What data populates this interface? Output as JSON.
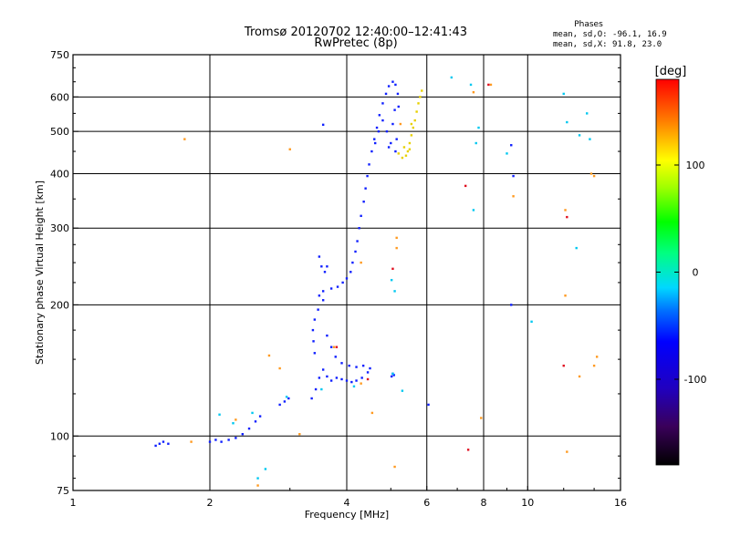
{
  "header": {
    "title": "Tromsø 20120702 12:40:00–12:41:43",
    "subtitle": "RwPretec (8p)",
    "phases_title": "Phases",
    "phases_o": "mean, sd,O: -96.1, 16.9",
    "phases_x": "mean, sd,X:  91.8, 23.0"
  },
  "chart_data": {
    "type": "scatter",
    "title": "Tromsø 20120702 12:40:00–12:41:43",
    "subtitle": "RwPretec (8p)",
    "xlabel": "Frequency [MHz]",
    "ylabel": "Stationary phase Virtual Height [km]",
    "xscale": "log2",
    "yscale": "log",
    "xlim": [
      1,
      16
    ],
    "ylim": [
      75,
      750
    ],
    "xticks": [
      1,
      2,
      4,
      6,
      8,
      10,
      16
    ],
    "xtick_labels": [
      "1",
      "2",
      "4",
      "6",
      "8",
      "10",
      "16"
    ],
    "yticks": [
      75,
      100,
      200,
      300,
      400,
      500,
      600,
      750
    ],
    "ytick_labels": [
      "75",
      "100",
      "200",
      "300",
      "400",
      "500",
      "600",
      "750"
    ],
    "grid": true,
    "colorbar": {
      "label": "[deg]",
      "range": [
        -180,
        180
      ],
      "ticks": [
        -100,
        0,
        100
      ],
      "tick_labels": [
        "-100",
        "0",
        "100"
      ]
    },
    "series": [
      {
        "points": [
          [
            1.52,
            95
          ],
          [
            1.55,
            96
          ],
          [
            1.58,
            97
          ],
          [
            1.62,
            96
          ],
          [
            2.0,
            97
          ],
          [
            2.06,
            98
          ],
          [
            2.12,
            97
          ],
          [
            2.2,
            98
          ],
          [
            2.28,
            99
          ],
          [
            2.36,
            101
          ],
          [
            2.44,
            104
          ],
          [
            2.52,
            108
          ],
          [
            2.58,
            111
          ],
          [
            2.85,
            118
          ],
          [
            2.92,
            120
          ],
          [
            2.98,
            122
          ],
          [
            3.35,
            122
          ],
          [
            3.42,
            128
          ],
          [
            3.48,
            136
          ],
          [
            3.55,
            142
          ],
          [
            3.62,
            137
          ],
          [
            3.7,
            134
          ],
          [
            3.8,
            136
          ],
          [
            3.9,
            135
          ],
          [
            4.0,
            134
          ],
          [
            4.1,
            133
          ],
          [
            4.2,
            134
          ],
          [
            4.32,
            136
          ],
          [
            4.45,
            140
          ],
          [
            3.4,
            155
          ],
          [
            3.38,
            165
          ],
          [
            3.37,
            175
          ],
          [
            3.4,
            185
          ],
          [
            3.46,
            195
          ],
          [
            3.55,
            205
          ],
          [
            3.62,
            170
          ],
          [
            3.7,
            160
          ],
          [
            3.78,
            152
          ],
          [
            3.9,
            147
          ],
          [
            4.05,
            145
          ],
          [
            4.2,
            144
          ],
          [
            4.35,
            145
          ],
          [
            4.5,
            143
          ],
          [
            3.48,
            210
          ],
          [
            3.55,
            215
          ],
          [
            3.7,
            218
          ],
          [
            3.82,
            220
          ],
          [
            3.92,
            225
          ],
          [
            4.0,
            230
          ],
          [
            4.08,
            238
          ],
          [
            3.48,
            258
          ],
          [
            3.52,
            245
          ],
          [
            3.58,
            238
          ],
          [
            3.62,
            245
          ],
          [
            4.12,
            250
          ],
          [
            4.18,
            265
          ],
          [
            4.22,
            280
          ],
          [
            4.26,
            300
          ],
          [
            4.3,
            320
          ],
          [
            4.36,
            345
          ],
          [
            4.4,
            370
          ],
          [
            4.44,
            395
          ],
          [
            4.48,
            420
          ],
          [
            4.54,
            450
          ],
          [
            4.6,
            480
          ],
          [
            4.66,
            510
          ],
          [
            4.72,
            545
          ],
          [
            4.8,
            580
          ],
          [
            4.88,
            610
          ],
          [
            4.95,
            635
          ],
          [
            5.05,
            650
          ],
          [
            5.12,
            640
          ],
          [
            5.18,
            610
          ],
          [
            5.2,
            570
          ],
          [
            4.62,
            470
          ],
          [
            4.7,
            500
          ],
          [
            4.8,
            530
          ],
          [
            4.9,
            500
          ],
          [
            5.0,
            470
          ],
          [
            5.05,
            520
          ],
          [
            5.1,
            560
          ],
          [
            5.15,
            480
          ],
          [
            5.12,
            450
          ],
          [
            4.95,
            460
          ],
          [
            5.02,
            137
          ],
          [
            5.05,
            139
          ],
          [
            5.08,
            138
          ],
          [
            3.55,
            518
          ],
          [
            9.2,
            465
          ],
          [
            9.3,
            395
          ],
          [
            9.2,
            200
          ],
          [
            6.05,
            118
          ]
        ]
      },
      {
        "points": [
          [
            5.45,
            450
          ],
          [
            5.5,
            470
          ],
          [
            5.55,
            490
          ],
          [
            5.6,
            510
          ],
          [
            5.65,
            530
          ],
          [
            5.7,
            555
          ],
          [
            5.75,
            580
          ],
          [
            5.4,
            440
          ],
          [
            5.3,
            435
          ],
          [
            5.35,
            460
          ],
          [
            5.55,
            520
          ],
          [
            5.8,
            600
          ],
          [
            5.85,
            620
          ],
          [
            5.2,
            445
          ],
          [
            5.5,
            455
          ]
        ]
      },
      {
        "points": [
          [
            6.8,
            665
          ],
          [
            7.5,
            640
          ],
          [
            7.8,
            510
          ],
          [
            7.7,
            470
          ],
          [
            7.6,
            330
          ],
          [
            9.0,
            445
          ],
          [
            12.2,
            525
          ],
          [
            13.5,
            550
          ],
          [
            12.0,
            610
          ],
          [
            13.0,
            490
          ],
          [
            13.7,
            480
          ],
          [
            5.1,
            215
          ],
          [
            5.02,
            228
          ],
          [
            10.2,
            183
          ],
          [
            12.8,
            270
          ],
          [
            2.95,
            123
          ],
          [
            5.3,
            127
          ],
          [
            5.05,
            139
          ],
          [
            2.65,
            84
          ],
          [
            2.55,
            80
          ],
          [
            4.15,
            130
          ],
          [
            3.52,
            128
          ],
          [
            2.1,
            112
          ],
          [
            2.25,
            107
          ],
          [
            2.48,
            113
          ]
        ]
      },
      {
        "points": [
          [
            1.76,
            480
          ],
          [
            3.0,
            455
          ],
          [
            7.6,
            615
          ],
          [
            8.3,
            640
          ],
          [
            9.3,
            355
          ],
          [
            12.1,
            330
          ],
          [
            12.1,
            210
          ],
          [
            14.0,
            395
          ],
          [
            13.8,
            400
          ],
          [
            5.15,
            285
          ],
          [
            5.15,
            270
          ],
          [
            5.25,
            520
          ],
          [
            4.3,
            250
          ],
          [
            3.75,
            160
          ],
          [
            4.55,
            113
          ],
          [
            4.3,
            132
          ],
          [
            2.7,
            153
          ],
          [
            3.15,
            101
          ],
          [
            2.85,
            143
          ],
          [
            2.28,
            109
          ],
          [
            2.55,
            77
          ],
          [
            12.2,
            92
          ],
          [
            14.0,
            145
          ],
          [
            14.2,
            152
          ],
          [
            13.0,
            137
          ],
          [
            5.1,
            85
          ],
          [
            7.9,
            110
          ],
          [
            1.82,
            97
          ]
        ]
      },
      {
        "points": [
          [
            7.3,
            375
          ],
          [
            7.4,
            93
          ],
          [
            8.2,
            640
          ],
          [
            12.0,
            145
          ],
          [
            5.05,
            242
          ],
          [
            3.8,
            160
          ],
          [
            12.2,
            318
          ],
          [
            4.45,
            135
          ]
        ]
      }
    ]
  }
}
